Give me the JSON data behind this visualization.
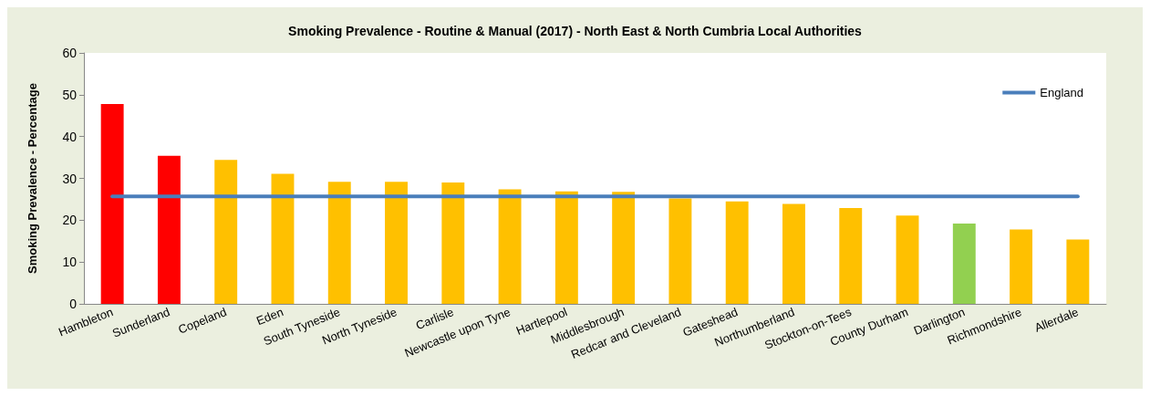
{
  "chart_data": {
    "type": "bar",
    "title": "Smoking Prevalence - Routine & Manual (2017) - North East & North Cumbria Local Authorities",
    "ylabel": "Smoking Prevalence - Percentage",
    "categories": [
      "Hambleton",
      "Sunderland",
      "Copeland",
      "Eden",
      "South Tyneside",
      "North Tyneside",
      "Carlisle",
      "Newcastle upon Tyne",
      "Hartlepool",
      "Middlesbrough",
      "Redcar and Cleveland",
      "Gateshead",
      "Northumberland",
      "Stockton-on-Tees",
      "County Durham",
      "Darlington",
      "Richmondshire",
      "Allerdale"
    ],
    "series": [
      {
        "values": [
          47.8,
          35.4,
          34.4,
          31.1,
          29.2,
          29.2,
          29.0,
          27.4,
          26.9,
          26.8,
          25.2,
          24.5,
          23.9,
          22.9,
          21.1,
          19.2,
          17.8,
          15.4
        ],
        "colors": [
          "#ff0000",
          "#ff0000",
          "#ffc000",
          "#ffc000",
          "#ffc000",
          "#ffc000",
          "#ffc000",
          "#ffc000",
          "#ffc000",
          "#ffc000",
          "#ffc000",
          "#ffc000",
          "#ffc000",
          "#ffc000",
          "#ffc000",
          "#92d050",
          "#ffc000",
          "#ffc000"
        ]
      },
      {
        "type": "line",
        "name": "England",
        "color": "#4a7ebb",
        "values": [
          25.7,
          25.7,
          25.7,
          25.7,
          25.7,
          25.7,
          25.7,
          25.7,
          25.7,
          25.7,
          25.7,
          25.7,
          25.7,
          25.7,
          25.7,
          25.7,
          25.7,
          25.7
        ]
      }
    ],
    "ylim": [
      0,
      60
    ],
    "yticks": [
      0,
      10,
      20,
      30,
      40,
      50,
      60
    ],
    "grid": false,
    "legend": "top right",
    "marker": "none"
  }
}
